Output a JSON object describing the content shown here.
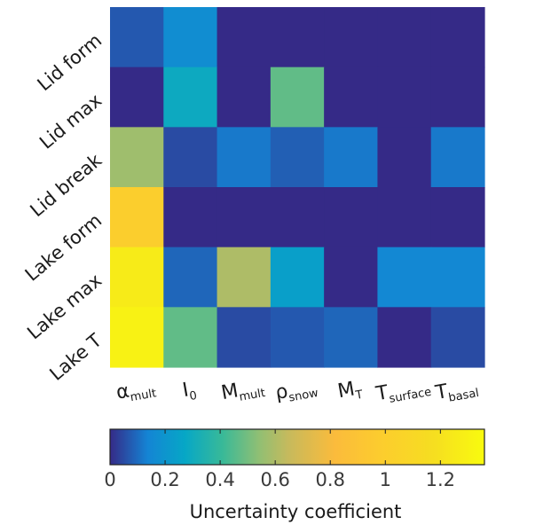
{
  "chart_data": {
    "type": "heatmap",
    "rows": [
      "Lid form",
      "Lid max",
      "Lid break",
      "Lake form",
      "Lake max",
      "Lake T"
    ],
    "columns": [
      {
        "main": "α",
        "sub": "mult",
        "sup": ""
      },
      {
        "main": "I",
        "sub": "0",
        "sup": ""
      },
      {
        "main": "M",
        "sub": "mult",
        "sup": ""
      },
      {
        "main": "ρ",
        "sub": "snow",
        "sup": ""
      },
      {
        "main": "M",
        "sub": "T",
        "sup": ""
      },
      {
        "main": "T",
        "sub": "surface",
        "sup": ""
      },
      {
        "main": "T",
        "sub": "basal",
        "sup": ""
      }
    ],
    "values": [
      [
        0.07,
        0.17,
        0.0,
        0.0,
        0.0,
        0.0,
        0.0
      ],
      [
        0.0,
        0.29,
        0.0,
        0.47,
        0.0,
        0.0,
        0.0
      ],
      [
        0.57,
        0.05,
        0.12,
        0.08,
        0.12,
        0.0,
        0.12
      ],
      [
        1.0,
        0.0,
        0.0,
        0.0,
        0.0,
        0.0,
        0.0
      ],
      [
        1.26,
        0.09,
        0.6,
        0.24,
        0.0,
        0.15,
        0.15
      ],
      [
        1.3,
        0.47,
        0.05,
        0.07,
        0.09,
        0.0,
        0.05
      ]
    ],
    "colorbar": {
      "label": "Uncertainty coefficient",
      "range": [
        0,
        1.36
      ],
      "ticks": [
        0,
        0.2,
        0.4,
        0.6,
        0.8,
        1,
        1.2
      ],
      "tick_labels": [
        "0",
        "0.2",
        "0.4",
        "0.6",
        "0.8",
        "1",
        "1.2"
      ],
      "orientation": "horizontal",
      "placement": "bottom",
      "colormap": "parula"
    },
    "grid": false
  }
}
